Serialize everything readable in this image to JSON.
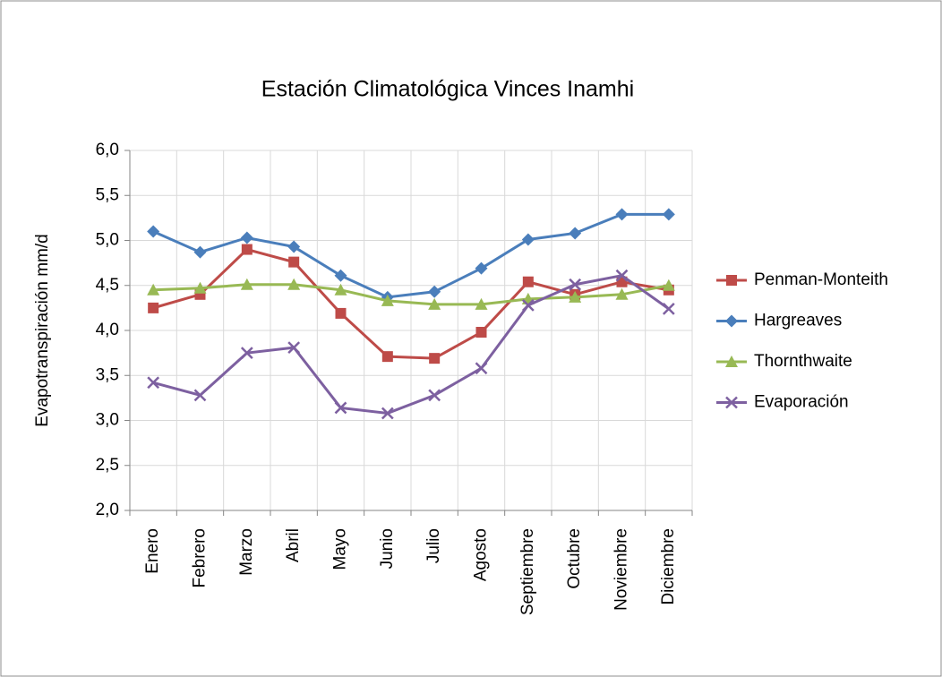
{
  "chart_data": {
    "type": "line",
    "title": "Estación Climatológica Vinces Inamhi",
    "y_label": "Evapotranspiración  mm/d",
    "categories": [
      "Enero",
      "Febrero",
      "Marzo",
      "Abril",
      "Mayo",
      "Junio",
      "Julio",
      "Agosto",
      "Septiembre",
      "Octubre",
      "Noviembre",
      "Diciembre"
    ],
    "series": [
      {
        "name": "Penman-Monteith",
        "color": "#be4b48",
        "marker": "square",
        "values": [
          4.25,
          4.4,
          4.9,
          4.76,
          4.19,
          3.71,
          3.69,
          3.98,
          4.54,
          4.4,
          4.54,
          4.45
        ]
      },
      {
        "name": "Hargreaves",
        "color": "#4a7ebb",
        "marker": "diamond",
        "values": [
          5.1,
          4.87,
          5.03,
          4.93,
          4.61,
          4.37,
          4.43,
          4.69,
          5.01,
          5.08,
          5.29,
          5.29
        ]
      },
      {
        "name": "Thornthwaite",
        "color": "#98b954",
        "marker": "triangle",
        "values": [
          4.45,
          4.47,
          4.51,
          4.51,
          4.45,
          4.33,
          4.29,
          4.29,
          4.35,
          4.37,
          4.4,
          4.5
        ]
      },
      {
        "name": "Evaporación",
        "color": "#7d60a0",
        "marker": "x",
        "values": [
          3.42,
          3.28,
          3.75,
          3.81,
          3.14,
          3.08,
          3.28,
          3.58,
          4.28,
          4.51,
          4.61,
          4.24
        ]
      }
    ],
    "ylim": [
      2,
      6
    ],
    "yticks": [
      {
        "value": 2,
        "label": "2,0"
      },
      {
        "value": 2.5,
        "label": "2,5"
      },
      {
        "value": 3,
        "label": "3,0"
      },
      {
        "value": 3.5,
        "label": "3,5"
      },
      {
        "value": 4,
        "label": "4,0"
      },
      {
        "value": 4.5,
        "label": "4,5"
      },
      {
        "value": 5,
        "label": "5,0"
      },
      {
        "value": 5.5,
        "label": "5,5"
      },
      {
        "value": 6,
        "label": "6,0"
      }
    ],
    "grid": true,
    "legend": "right"
  }
}
